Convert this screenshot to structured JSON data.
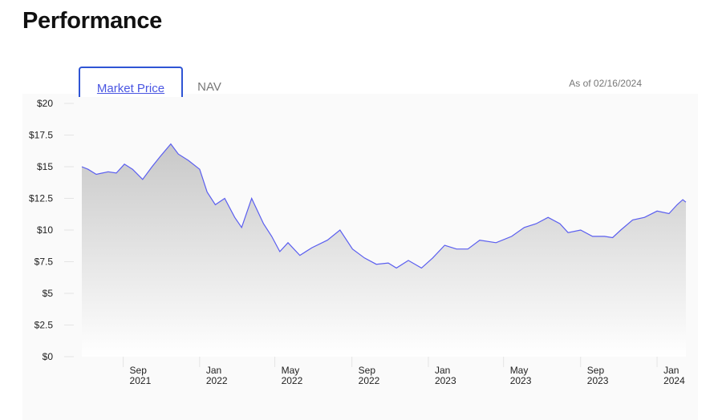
{
  "page_title": "Performance",
  "tabs": [
    {
      "label": "Market Price",
      "active": true
    },
    {
      "label": "NAV",
      "active": false
    }
  ],
  "as_of": "As of 02/16/2024",
  "chart_data": {
    "type": "area",
    "title": "",
    "xlabel": "",
    "ylabel": "",
    "ylim": [
      0,
      20
    ],
    "y_ticks": [
      {
        "v": 0,
        "label": "$0"
      },
      {
        "v": 2.5,
        "label": "$2.5"
      },
      {
        "v": 5,
        "label": "$5"
      },
      {
        "v": 7.5,
        "label": "$7.5"
      },
      {
        "v": 10,
        "label": "$10"
      },
      {
        "v": 12.5,
        "label": "$12.5"
      },
      {
        "v": 15,
        "label": "$15"
      },
      {
        "v": 17.5,
        "label": "$17.5"
      },
      {
        "v": 20,
        "label": "$20"
      }
    ],
    "x_ticks": [
      {
        "date": "2021-09-01",
        "m": "Sep",
        "y": "2021"
      },
      {
        "date": "2022-01-01",
        "m": "Jan",
        "y": "2022"
      },
      {
        "date": "2022-05-01",
        "m": "May",
        "y": "2022"
      },
      {
        "date": "2022-09-01",
        "m": "Sep",
        "y": "2022"
      },
      {
        "date": "2023-01-01",
        "m": "Jan",
        "y": "2023"
      },
      {
        "date": "2023-05-01",
        "m": "May",
        "y": "2023"
      },
      {
        "date": "2023-09-01",
        "m": "Sep",
        "y": "2023"
      },
      {
        "date": "2024-01-01",
        "m": "Jan",
        "y": "2024"
      }
    ],
    "xlim": [
      "2021-06-27",
      "2024-02-16"
    ],
    "line_color": "#5a5ef0",
    "series": [
      {
        "name": "Market Price",
        "points": [
          [
            "2021-06-27",
            15.0
          ],
          [
            "2021-07-07",
            14.8
          ],
          [
            "2021-07-20",
            14.4
          ],
          [
            "2021-08-08",
            14.6
          ],
          [
            "2021-08-21",
            14.5
          ],
          [
            "2021-09-03",
            15.2
          ],
          [
            "2021-09-16",
            14.8
          ],
          [
            "2021-10-02",
            14.0
          ],
          [
            "2021-10-17",
            15.0
          ],
          [
            "2021-10-30",
            15.8
          ],
          [
            "2021-11-16",
            16.8
          ],
          [
            "2021-11-28",
            16.0
          ],
          [
            "2021-12-14",
            15.5
          ],
          [
            "2022-01-01",
            14.8
          ],
          [
            "2022-01-13",
            13.0
          ],
          [
            "2022-01-26",
            12.0
          ],
          [
            "2022-02-10",
            12.5
          ],
          [
            "2022-02-26",
            11.0
          ],
          [
            "2022-03-09",
            10.2
          ],
          [
            "2022-03-25",
            12.5
          ],
          [
            "2022-04-13",
            10.5
          ],
          [
            "2022-04-26",
            9.5
          ],
          [
            "2022-05-09",
            8.3
          ],
          [
            "2022-05-22",
            9.0
          ],
          [
            "2022-06-10",
            8.0
          ],
          [
            "2022-06-29",
            8.6
          ],
          [
            "2022-07-24",
            9.2
          ],
          [
            "2022-08-13",
            10.0
          ],
          [
            "2022-09-02",
            8.5
          ],
          [
            "2022-09-21",
            7.8
          ],
          [
            "2022-10-10",
            7.3
          ],
          [
            "2022-10-29",
            7.4
          ],
          [
            "2022-11-11",
            7.0
          ],
          [
            "2022-11-30",
            7.6
          ],
          [
            "2022-12-21",
            7.0
          ],
          [
            "2023-01-08",
            7.8
          ],
          [
            "2023-01-27",
            8.8
          ],
          [
            "2023-02-15",
            8.5
          ],
          [
            "2023-03-05",
            8.5
          ],
          [
            "2023-03-24",
            9.2
          ],
          [
            "2023-04-19",
            9.0
          ],
          [
            "2023-05-14",
            9.5
          ],
          [
            "2023-06-03",
            10.2
          ],
          [
            "2023-06-22",
            10.5
          ],
          [
            "2023-07-11",
            11.0
          ],
          [
            "2023-07-30",
            10.5
          ],
          [
            "2023-08-12",
            9.8
          ],
          [
            "2023-09-01",
            10.0
          ],
          [
            "2023-09-20",
            9.5
          ],
          [
            "2023-10-09",
            9.5
          ],
          [
            "2023-10-22",
            9.4
          ],
          [
            "2023-11-04",
            10.0
          ],
          [
            "2023-11-23",
            10.8
          ],
          [
            "2023-12-12",
            11.0
          ],
          [
            "2024-01-01",
            11.5
          ],
          [
            "2024-01-20",
            11.3
          ],
          [
            "2024-02-02",
            12.0
          ],
          [
            "2024-02-11",
            12.4
          ],
          [
            "2024-02-16",
            12.2
          ]
        ]
      }
    ]
  }
}
